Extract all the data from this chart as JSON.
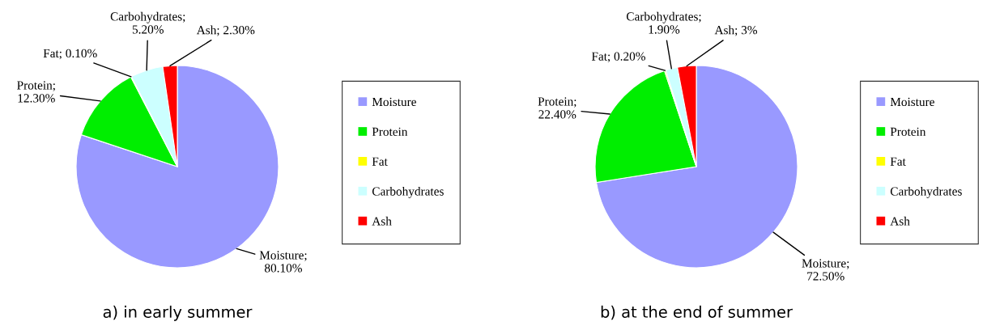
{
  "chart_data": [
    {
      "type": "pie",
      "title": "a) in early summer",
      "categories": [
        "Moisture",
        "Protein",
        "Fat",
        "Carbohydrates",
        "Ash"
      ],
      "values": [
        80.1,
        12.3,
        0.1,
        5.2,
        2.3
      ],
      "value_labels": [
        "Moisture; 80.10%",
        "Protein; 12.30%",
        "Fat; 0.10%",
        "Carbohydrates; 5.20%",
        "Ash; 2.30%"
      ],
      "colors": [
        "#9999ff",
        "#00ee00",
        "#ffff00",
        "#ccffff",
        "#ff0000"
      ],
      "legend": "right"
    },
    {
      "type": "pie",
      "title": "b) at the end of summer",
      "categories": [
        "Moisture",
        "Protein",
        "Fat",
        "Carbohydrates",
        "Ash"
      ],
      "values": [
        72.5,
        22.4,
        0.2,
        1.9,
        3
      ],
      "value_labels": [
        "Moisture; 72.50%",
        "Protein; 22.40%",
        "Fat; 0.20%",
        "Carbohydrates; 1.90%",
        "Ash; 3%"
      ],
      "colors": [
        "#9999ff",
        "#00ee00",
        "#ffff00",
        "#ccffff",
        "#ff0000"
      ],
      "legend": "right"
    }
  ]
}
